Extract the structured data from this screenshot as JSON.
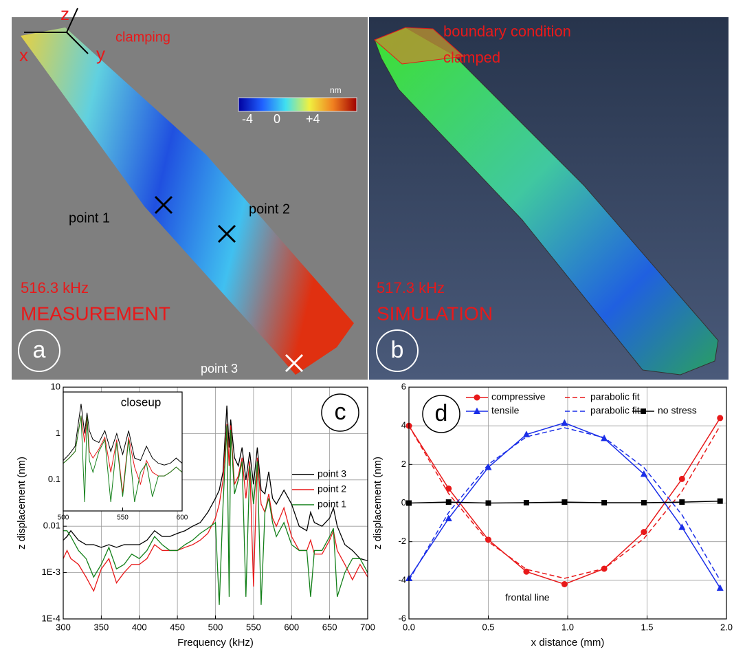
{
  "panels": {
    "a": {
      "label": "a",
      "axis_z": "z",
      "axis_x": "x",
      "axis_y": "y",
      "clamping": "clamping",
      "colorbar_unit": "nm",
      "colorbar_ticks": [
        "-4",
        "0",
        "+4"
      ],
      "point_1": "point 1",
      "point_2": "point 2",
      "point_3": "point 3",
      "frequency": "516.3 kHz",
      "title": "MEASUREMENT"
    },
    "b": {
      "label": "b",
      "boundary_1": "boundary condition",
      "boundary_2": "clamped",
      "frequency": "517.3 kHz",
      "title": "SIMULATION"
    }
  },
  "chart_data": [
    {
      "type": "line",
      "label": "c",
      "x_label": "Frequency (kHz)",
      "y_label": "z displacement (nm)",
      "log_y": true,
      "grid": true,
      "xlim": [
        300,
        700
      ],
      "xticks": [
        300,
        350,
        400,
        450,
        500,
        550,
        600,
        650,
        700
      ],
      "ylim": [
        0.0001,
        10
      ],
      "yticks": [
        {
          "value": 0.0001,
          "label": "1E-4"
        },
        {
          "value": 0.001,
          "label": "1E-3"
        },
        0.01,
        0.1,
        1,
        10
      ],
      "x": [
        300,
        305,
        310,
        320,
        330,
        340,
        350,
        360,
        370,
        380,
        390,
        400,
        410,
        420,
        430,
        440,
        450,
        460,
        470,
        480,
        490,
        500,
        505,
        510,
        515,
        518,
        520,
        525,
        530,
        535,
        540,
        545,
        550,
        555,
        560,
        565,
        570,
        575,
        580,
        590,
        600,
        610,
        620,
        625,
        630,
        640,
        650,
        655,
        660,
        670,
        680,
        690,
        700
      ],
      "series": [
        {
          "name": "point 3",
          "color": "#000000",
          "values": [
            0.005,
            0.006,
            0.008,
            0.005,
            0.004,
            0.004,
            0.0035,
            0.004,
            0.0035,
            0.004,
            0.004,
            0.004,
            0.005,
            0.008,
            0.006,
            0.006,
            0.007,
            0.008,
            0.01,
            0.012,
            0.02,
            0.04,
            0.06,
            0.15,
            4,
            0.5,
            2,
            0.3,
            0.2,
            0.5,
            0.1,
            0.4,
            0.08,
            0.5,
            0.06,
            0.05,
            0.15,
            0.04,
            0.03,
            0.06,
            0.03,
            0.01,
            0.008,
            0.02,
            0.012,
            0.01,
            0.015,
            0.025,
            0.01,
            0.004,
            0.003,
            0.002,
            0.0018
          ]
        },
        {
          "name": "point 2",
          "color": "#e8191a",
          "values": [
            0.002,
            0.003,
            0.002,
            0.0015,
            0.0008,
            0.0004,
            0.0012,
            0.002,
            0.0006,
            0.001,
            0.0015,
            0.0015,
            0.002,
            0.004,
            0.003,
            0.003,
            0.003,
            0.0035,
            0.004,
            0.005,
            0.007,
            0.015,
            0.03,
            0.1,
            1.6,
            0.2,
            1.5,
            0.08,
            0.12,
            0.3,
            0.04,
            0.25,
            0.0005,
            0.3,
            0.03,
            0.02,
            0.05,
            0.015,
            0.01,
            0.025,
            0.006,
            0.003,
            0.003,
            0.005,
            0.0025,
            0.0025,
            0.005,
            0.008,
            0.003,
            0.0015,
            0.0007,
            0.0015,
            0.0008
          ]
        },
        {
          "name": "point 1",
          "color": "#14801a",
          "values": [
            0.008,
            0.008,
            0.006,
            0.003,
            0.002,
            0.0008,
            0.0015,
            0.0035,
            0.0012,
            0.0015,
            0.0025,
            0.002,
            0.003,
            0.006,
            0.004,
            0.003,
            0.003,
            0.004,
            0.005,
            0.007,
            0.009,
            0.012,
            0.0002,
            0.03,
            1.5,
            0.0003,
            1.2,
            0.05,
            0.1,
            0.25,
            0.0003,
            0.2,
            0.03,
            0.25,
            0.0002,
            0.02,
            0.04,
            0.012,
            0.006,
            0.012,
            0.004,
            0.003,
            0.003,
            0.0003,
            0.003,
            0.003,
            0.006,
            0.009,
            0.0003,
            0.001,
            0.002,
            0.002,
            0.001
          ]
        }
      ]
    },
    {
      "type": "line",
      "label": "closeup",
      "log_y": true,
      "grid": false,
      "xlim": [
        500,
        600
      ],
      "xticks": [
        500,
        550,
        600
      ],
      "ylim": [
        0.001,
        10
      ],
      "x": [
        500,
        505,
        510,
        515,
        518,
        520,
        522,
        525,
        530,
        535,
        540,
        545,
        550,
        555,
        560,
        565,
        570,
        575,
        580,
        585,
        590,
        595,
        600
      ],
      "series": [
        {
          "color": "#000000",
          "values": [
            0.05,
            0.08,
            0.15,
            4,
            0.4,
            2,
            0.5,
            0.25,
            0.2,
            0.5,
            0.1,
            0.4,
            0.08,
            0.5,
            0.06,
            0.05,
            0.15,
            0.06,
            0.04,
            0.035,
            0.04,
            0.06,
            0.04
          ]
        },
        {
          "color": "#e8191a",
          "values": [
            0.04,
            0.06,
            0.1,
            1.6,
            0.2,
            1.5,
            0.1,
            0.06,
            0.12,
            0.3,
            0.02,
            0.25,
            0.004,
            0.3,
            0.03,
            0.008,
            0.05,
            0.02,
            0.015,
            0.015,
            0.02,
            0.03,
            0.02
          ]
        },
        {
          "color": "#14801a",
          "values": [
            0.04,
            0.06,
            0.1,
            1.6,
            0.002,
            1.5,
            0.05,
            0.02,
            0.1,
            0.25,
            0.002,
            0.2,
            0.003,
            0.25,
            0.002,
            0.02,
            0.04,
            0.003,
            0.015,
            0.015,
            0.02,
            0.03,
            0.02
          ]
        }
      ]
    },
    {
      "type": "line",
      "label": "d",
      "annotation": "frontal line",
      "x_label": "x distance (mm)",
      "y_label": "z displacement (nm)",
      "log_y": false,
      "grid": true,
      "xlim": [
        0,
        2
      ],
      "xticks": [
        {
          "value": 0,
          "label": "0.0"
        },
        {
          "value": 0.5,
          "label": "0.5"
        },
        {
          "value": 1,
          "label": "1.0"
        },
        {
          "value": 1.5,
          "label": "1.5"
        },
        {
          "value": 2,
          "label": "2.0"
        }
      ],
      "ylim": [
        -6,
        6
      ],
      "yticks": [
        -6,
        -4,
        -2,
        0,
        2,
        4,
        6
      ],
      "x": [
        0,
        0.25,
        0.5,
        0.74,
        0.98,
        1.23,
        1.48,
        1.72,
        1.96
      ],
      "series": [
        {
          "name": "compressive",
          "color": "#e8191a",
          "marker": "circle",
          "values": [
            4.0,
            0.75,
            -1.9,
            -3.55,
            -4.2,
            -3.4,
            -1.5,
            1.25,
            4.4
          ]
        },
        {
          "name": "parabolic fit",
          "color": "#e8191a",
          "dash": true,
          "values": [
            4.0,
            0.49,
            -2.0,
            -3.43,
            -3.9,
            -3.39,
            -1.84,
            0.61,
            4.0
          ]
        },
        {
          "name": "tensile",
          "color": "#1a2ee8",
          "marker": "triangle",
          "values": [
            -3.9,
            -0.8,
            1.85,
            3.55,
            4.15,
            3.35,
            1.5,
            -1.25,
            -4.4
          ]
        },
        {
          "name": "parabolic fit",
          "color": "#1a2ee8",
          "dash": true,
          "values": [
            -4.0,
            -0.49,
            2.0,
            3.43,
            3.9,
            3.39,
            1.84,
            -0.61,
            -4.0
          ]
        },
        {
          "name": "no stress",
          "color": "#000000",
          "marker": "square",
          "values": [
            0.0,
            0.05,
            0.0,
            0.02,
            0.05,
            0.02,
            0.02,
            0.05,
            0.1
          ]
        }
      ]
    }
  ]
}
